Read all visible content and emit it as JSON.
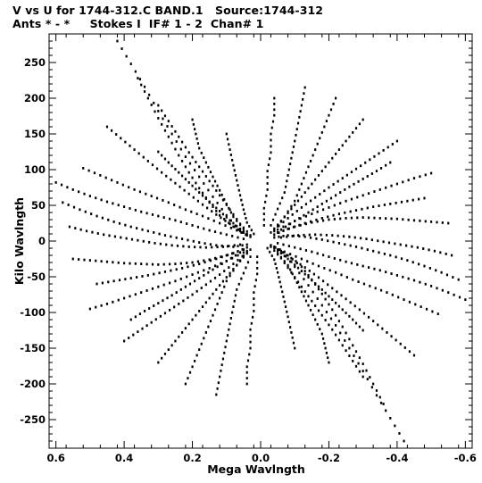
{
  "header": {
    "line1": "V vs U for 1744-312.C BAND.1   Source:1744-312",
    "line2": "Ants * - *     Stokes I  IF# 1 - 2  Chan# 1"
  },
  "chart_data": {
    "type": "scatter",
    "xlabel": "Mega Wavlngth",
    "ylabel": "Kilo Wavlngth",
    "xlim": [
      0.62,
      -0.62
    ],
    "ylim": [
      -290,
      290
    ],
    "x_ticks": [
      0.6,
      0.4,
      0.2,
      0.0,
      -0.2,
      -0.4,
      -0.6
    ],
    "x_tick_labels": [
      "0.6",
      "0.4",
      "0.2",
      "0.0",
      "-0.2",
      "-0.4",
      "-0.6"
    ],
    "y_ticks": [
      250,
      200,
      150,
      100,
      50,
      0,
      -50,
      -100,
      -150,
      -200,
      -250
    ],
    "y_tick_labels": [
      "250",
      "200",
      "150",
      "100",
      "50",
      "0",
      "-50",
      "-100",
      "-150",
      "-200",
      "-250"
    ],
    "grid": false,
    "marker_color": "#000000",
    "symmetric": true,
    "tracks": [
      {
        "points": [
          [
            0.42,
            280
          ],
          [
            0.38,
            248
          ],
          [
            0.34,
            216
          ],
          [
            0.3,
            182
          ],
          [
            0.26,
            150
          ],
          [
            0.22,
            118
          ],
          [
            0.18,
            90
          ],
          [
            0.14,
            62
          ],
          [
            0.1,
            36
          ],
          [
            0.06,
            14
          ]
        ]
      },
      {
        "points": [
          [
            0.3,
            190
          ],
          [
            0.27,
            168
          ],
          [
            0.24,
            146
          ],
          [
            0.21,
            124
          ],
          [
            0.18,
            104
          ],
          [
            0.15,
            84
          ],
          [
            0.12,
            64
          ],
          [
            0.09,
            44
          ],
          [
            0.06,
            24
          ],
          [
            0.03,
            8
          ]
        ]
      },
      {
        "points": [
          [
            0.6,
            82
          ],
          [
            0.55,
            72
          ],
          [
            0.5,
            63
          ],
          [
            0.45,
            55
          ],
          [
            0.4,
            48
          ],
          [
            0.35,
            41
          ],
          [
            0.3,
            35
          ],
          [
            0.25,
            29
          ],
          [
            0.2,
            22
          ],
          [
            0.15,
            15
          ],
          [
            0.1,
            9
          ],
          [
            0.05,
            3
          ]
        ]
      },
      {
        "points": [
          [
            0.58,
            54
          ],
          [
            0.53,
            44
          ],
          [
            0.48,
            35
          ],
          [
            0.43,
            27
          ],
          [
            0.38,
            20
          ],
          [
            0.33,
            14
          ],
          [
            0.28,
            8
          ],
          [
            0.23,
            3
          ],
          [
            0.18,
            -2
          ],
          [
            0.13,
            -6
          ],
          [
            0.08,
            -8
          ],
          [
            0.04,
            -5
          ]
        ]
      },
      {
        "points": [
          [
            0.55,
            -25
          ],
          [
            0.5,
            -27
          ],
          [
            0.45,
            -29
          ],
          [
            0.4,
            -31
          ],
          [
            0.35,
            -32
          ],
          [
            0.3,
            -33
          ],
          [
            0.25,
            -32
          ],
          [
            0.2,
            -30
          ],
          [
            0.15,
            -26
          ],
          [
            0.1,
            -20
          ],
          [
            0.05,
            -12
          ]
        ]
      },
      {
        "points": [
          [
            0.5,
            -95
          ],
          [
            0.45,
            -88
          ],
          [
            0.4,
            -80
          ],
          [
            0.35,
            -72
          ],
          [
            0.3,
            -64
          ],
          [
            0.25,
            -56
          ],
          [
            0.2,
            -47
          ],
          [
            0.15,
            -38
          ],
          [
            0.1,
            -28
          ],
          [
            0.05,
            -16
          ]
        ]
      },
      {
        "points": [
          [
            0.4,
            -140
          ],
          [
            0.36,
            -127
          ],
          [
            0.32,
            -114
          ],
          [
            0.28,
            -101
          ],
          [
            0.24,
            -88
          ],
          [
            0.2,
            -75
          ],
          [
            0.16,
            -61
          ],
          [
            0.12,
            -47
          ],
          [
            0.08,
            -32
          ],
          [
            0.04,
            -16
          ]
        ]
      },
      {
        "points": [
          [
            0.22,
            -200
          ],
          [
            0.2,
            -176
          ],
          [
            0.18,
            -152
          ],
          [
            0.16,
            -128
          ],
          [
            0.14,
            -104
          ],
          [
            0.12,
            -80
          ],
          [
            0.1,
            -56
          ],
          [
            0.07,
            -34
          ],
          [
            0.04,
            -14
          ]
        ]
      },
      {
        "points": [
          [
            0.36,
            228
          ],
          [
            0.33,
            200
          ],
          [
            0.3,
            172
          ],
          [
            0.27,
            146
          ],
          [
            0.24,
            120
          ],
          [
            0.21,
            96
          ],
          [
            0.18,
            74
          ],
          [
            0.15,
            54
          ],
          [
            0.12,
            36
          ],
          [
            0.08,
            20
          ],
          [
            0.04,
            8
          ]
        ]
      },
      {
        "points": [
          [
            0.52,
            102
          ],
          [
            0.47,
            92
          ],
          [
            0.42,
            82
          ],
          [
            0.37,
            72
          ],
          [
            0.32,
            63
          ],
          [
            0.27,
            54
          ],
          [
            0.22,
            44
          ],
          [
            0.17,
            35
          ],
          [
            0.12,
            25
          ],
          [
            0.07,
            15
          ],
          [
            0.03,
            6
          ]
        ]
      },
      {
        "points": [
          [
            0.45,
            160
          ],
          [
            0.41,
            144
          ],
          [
            0.37,
            128
          ],
          [
            0.33,
            112
          ],
          [
            0.29,
            96
          ],
          [
            0.25,
            81
          ],
          [
            0.21,
            66
          ],
          [
            0.17,
            51
          ],
          [
            0.13,
            37
          ],
          [
            0.09,
            24
          ],
          [
            0.05,
            12
          ]
        ]
      },
      {
        "points": [
          [
            0.48,
            -60
          ],
          [
            0.43,
            -56
          ],
          [
            0.38,
            -52
          ],
          [
            0.33,
            -48
          ],
          [
            0.28,
            -43
          ],
          [
            0.23,
            -38
          ],
          [
            0.18,
            -32
          ],
          [
            0.13,
            -25
          ],
          [
            0.08,
            -17
          ],
          [
            0.04,
            -9
          ]
        ]
      },
      {
        "points": [
          [
            0.3,
            -170
          ],
          [
            0.27,
            -152
          ],
          [
            0.24,
            -134
          ],
          [
            0.21,
            -116
          ],
          [
            0.18,
            -98
          ],
          [
            0.15,
            -80
          ],
          [
            0.12,
            -62
          ],
          [
            0.09,
            -45
          ],
          [
            0.06,
            -28
          ],
          [
            0.03,
            -12
          ]
        ]
      },
      {
        "points": [
          [
            0.13,
            -215
          ],
          [
            0.12,
            -190
          ],
          [
            0.11,
            -165
          ],
          [
            0.1,
            -140
          ],
          [
            0.09,
            -116
          ],
          [
            0.08,
            -92
          ],
          [
            0.07,
            -68
          ],
          [
            0.05,
            -45
          ],
          [
            0.03,
            -22
          ]
        ]
      },
      {
        "points": [
          [
            0.2,
            170
          ],
          [
            0.19,
            150
          ],
          [
            0.18,
            130
          ],
          [
            0.16,
            110
          ],
          [
            0.14,
            90
          ],
          [
            0.12,
            71
          ],
          [
            0.1,
            52
          ],
          [
            0.08,
            34
          ],
          [
            0.05,
            17
          ]
        ]
      },
      {
        "points": [
          [
            0.56,
            20
          ],
          [
            0.51,
            14
          ],
          [
            0.46,
            9
          ],
          [
            0.41,
            5
          ],
          [
            0.36,
            1
          ],
          [
            0.31,
            -3
          ],
          [
            0.26,
            -6
          ],
          [
            0.21,
            -8
          ],
          [
            0.16,
            -9
          ],
          [
            0.11,
            -8
          ],
          [
            0.06,
            -5
          ]
        ]
      },
      {
        "points": [
          [
            0.1,
            150
          ],
          [
            0.09,
            128
          ],
          [
            0.08,
            106
          ],
          [
            0.07,
            85
          ],
          [
            0.06,
            64
          ],
          [
            0.05,
            44
          ],
          [
            0.04,
            26
          ],
          [
            0.02,
            10
          ]
        ]
      },
      {
        "points": [
          [
            0.04,
            -200
          ],
          [
            0.04,
            -176
          ],
          [
            0.03,
            -150
          ],
          [
            0.03,
            -124
          ],
          [
            0.02,
            -98
          ],
          [
            0.02,
            -72
          ],
          [
            0.01,
            -46
          ],
          [
            0.01,
            -22
          ]
        ]
      },
      {
        "points": [
          [
            0.3,
            125
          ],
          [
            0.27,
            110
          ],
          [
            0.24,
            96
          ],
          [
            0.21,
            82
          ],
          [
            0.18,
            68
          ],
          [
            0.15,
            55
          ],
          [
            0.12,
            42
          ],
          [
            0.09,
            29
          ],
          [
            0.06,
            17
          ],
          [
            0.03,
            6
          ]
        ]
      },
      {
        "points": [
          [
            0.38,
            -110
          ],
          [
            0.34,
            -98
          ],
          [
            0.3,
            -87
          ],
          [
            0.26,
            -76
          ],
          [
            0.22,
            -64
          ],
          [
            0.18,
            -52
          ],
          [
            0.14,
            -40
          ],
          [
            0.1,
            -28
          ],
          [
            0.06,
            -16
          ]
        ]
      }
    ]
  }
}
